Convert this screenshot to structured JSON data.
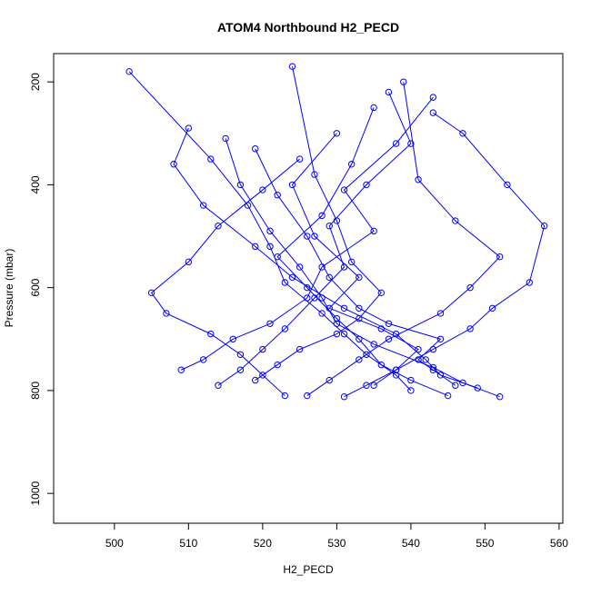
{
  "chart_data": {
    "type": "line",
    "title": "ATOM4 Northbound H2_PECD",
    "x_label": "H2_PECD",
    "y_label": "Pressure (mbar)",
    "color": "#0000ff",
    "markers": true,
    "xlim": [
      491.8,
      560.5
    ],
    "xticks": [
      500,
      510,
      520,
      530,
      540,
      550,
      560
    ],
    "ylim": [
      1058,
      145
    ],
    "yticks": [
      200,
      400,
      600,
      800,
      1000
    ],
    "series": [
      {
        "x": [
          531,
          534,
          538,
          541,
          536,
          529,
          533,
          527,
          524,
          530
        ],
        "values": [
          812,
          790,
          760,
          720,
          680,
          640,
          580,
          500,
          400,
          300
        ]
      },
      {
        "x": [
          545,
          540,
          536,
          533,
          530,
          526,
          522,
          528,
          532,
          535
        ],
        "values": [
          810,
          780,
          750,
          700,
          660,
          600,
          540,
          460,
          360,
          250
        ]
      },
      {
        "x": [
          549,
          544,
          542,
          538,
          531,
          524,
          519,
          512,
          508,
          510
        ],
        "values": [
          795,
          770,
          740,
          690,
          640,
          580,
          520,
          440,
          360,
          290
        ]
      },
      {
        "x": [
          514,
          517,
          520,
          523,
          527,
          531,
          529,
          534,
          540,
          537
        ],
        "values": [
          790,
          760,
          720,
          680,
          620,
          560,
          480,
          400,
          320,
          220
        ]
      },
      {
        "x": [
          552,
          547,
          543,
          535,
          530,
          528,
          525,
          521,
          517,
          515
        ],
        "values": [
          812,
          785,
          755,
          710,
          670,
          620,
          560,
          490,
          400,
          310
        ]
      },
      {
        "x": [
          526,
          529,
          533,
          537,
          544,
          548,
          552,
          546,
          541,
          539
        ],
        "values": [
          810,
          780,
          740,
          700,
          650,
          600,
          540,
          470,
          390,
          200
        ]
      },
      {
        "x": [
          519,
          522,
          525,
          530,
          533,
          536,
          532,
          530,
          527,
          524
        ],
        "values": [
          780,
          750,
          720,
          690,
          660,
          610,
          550,
          470,
          380,
          170
        ]
      },
      {
        "x": [
          509,
          512,
          516,
          521,
          526,
          528,
          535,
          531,
          538,
          543
        ],
        "values": [
          760,
          740,
          700,
          670,
          620,
          560,
          490,
          410,
          320,
          230
        ]
      },
      {
        "x": [
          540,
          538,
          534,
          531,
          528,
          523,
          521,
          518,
          513,
          502
        ],
        "values": [
          800,
          770,
          730,
          690,
          650,
          590,
          520,
          440,
          350,
          180
        ]
      },
      {
        "x": [
          546,
          543,
          541,
          544,
          537,
          533,
          529,
          526,
          522,
          519
        ],
        "values": [
          790,
          760,
          740,
          700,
          670,
          640,
          580,
          500,
          420,
          330
        ]
      },
      {
        "x": [
          535,
          538,
          543,
          548,
          551,
          556,
          558,
          553,
          547,
          543
        ],
        "values": [
          790,
          760,
          720,
          680,
          640,
          590,
          480,
          400,
          300,
          260
        ]
      },
      {
        "x": [
          523,
          520,
          517,
          513,
          507,
          505,
          510,
          514,
          520,
          525
        ],
        "values": [
          810,
          770,
          730,
          690,
          650,
          610,
          550,
          480,
          410,
          350
        ]
      }
    ]
  }
}
